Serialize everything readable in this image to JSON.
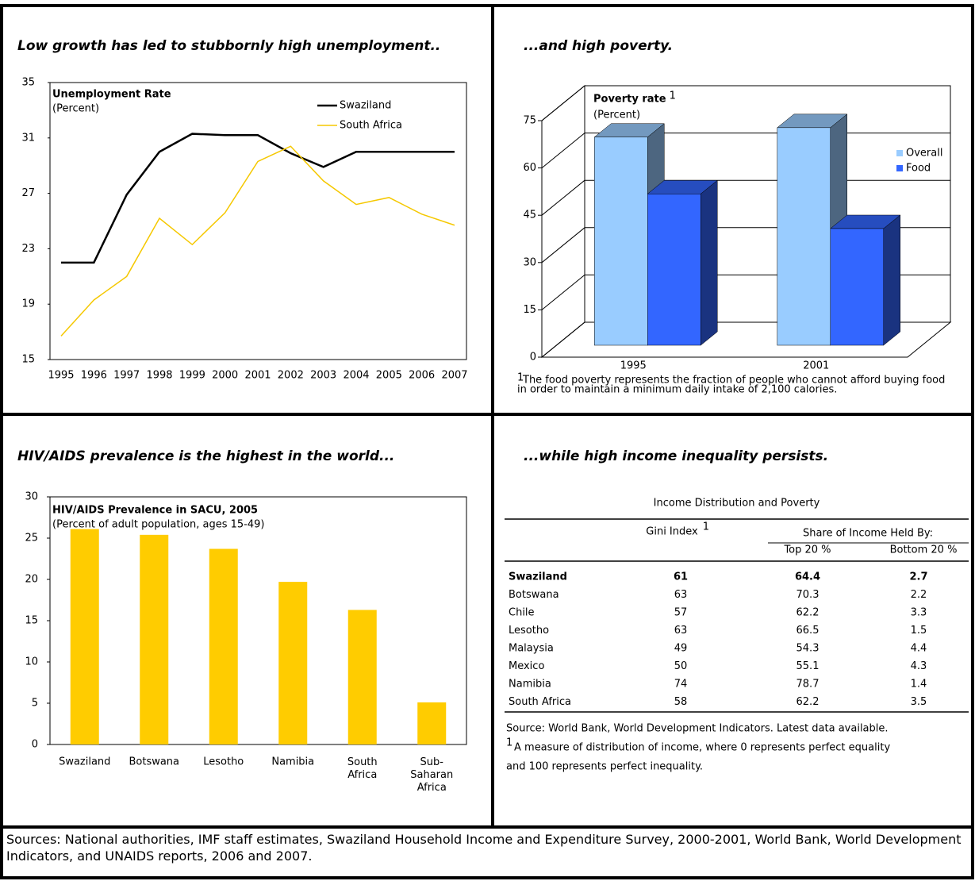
{
  "chart_data": [
    {
      "type": "line",
      "headline": "Low growth has led to stubbornly high unemployment..",
      "title": "Unemployment Rate",
      "subtitle": "(Percent)",
      "categories": [
        "1995",
        "1996",
        "1997",
        "1998",
        "1999",
        "2000",
        "2001",
        "2002",
        "2003",
        "2004",
        "2005",
        "2006",
        "2007"
      ],
      "series": [
        {
          "name": "Swaziland",
          "color": "#000000",
          "values": [
            22.0,
            22.0,
            26.9,
            30.0,
            31.3,
            31.2,
            31.2,
            29.9,
            28.9,
            30.0,
            30.0,
            30.0,
            30.0
          ]
        },
        {
          "name": "South Africa",
          "color": "#f5c800",
          "values": [
            16.7,
            19.3,
            21.0,
            25.2,
            23.3,
            25.6,
            29.3,
            30.4,
            27.9,
            26.2,
            26.7,
            25.5,
            24.7
          ]
        }
      ],
      "ylim": [
        15,
        35
      ],
      "yticks": [
        15,
        19,
        23,
        27,
        31,
        35
      ],
      "legend": "top-right"
    },
    {
      "type": "bar3d",
      "headline": "...and high poverty.",
      "title": "Poverty rate",
      "title_marker": "1",
      "subtitle": "(Percent)",
      "categories": [
        "1995",
        "2001"
      ],
      "series": [
        {
          "name": "Overall",
          "color": "#99ccff",
          "values": [
            66,
            69
          ]
        },
        {
          "name": "Food",
          "color": "#3366ff",
          "values": [
            48,
            37
          ]
        }
      ],
      "ylim": [
        0,
        75
      ],
      "yticks": [
        0,
        15,
        30,
        45,
        60,
        75
      ],
      "grid": true,
      "legend": "right",
      "footnote_marker": "1",
      "footnote": [
        "The food poverty represents the fraction of people who cannot afford buying food",
        "in order to maintain a minimum daily intake of 2,100 calories."
      ]
    },
    {
      "type": "bar",
      "headline": "HIV/AIDS prevalence is the highest in the world...",
      "title": "HIV/AIDS Prevalence in SACU, 2005",
      "subtitle": "(Percent of adult population, ages 15-49)",
      "categories": [
        "Swaziland",
        "Botswana",
        "Lesotho",
        "Namibia",
        "South Africa",
        "Sub-Saharan Africa"
      ],
      "values": [
        26.1,
        25.4,
        23.7,
        19.7,
        16.3,
        5.1
      ],
      "color": "#ffcc00",
      "ylim": [
        0,
        30
      ],
      "yticks": [
        0,
        5,
        10,
        15,
        20,
        25,
        30
      ]
    }
  ],
  "table": {
    "headline": "...while high income inequality persists.",
    "title": "Income Distribution and Poverty",
    "header": [
      "Gini Index",
      "Share of Income Held By:",
      "Top 20 %",
      "Bottom 20 %"
    ],
    "header_marker": "1",
    "rows": [
      [
        "Swaziland",
        61,
        64.4,
        2.7
      ],
      [
        "Botswana",
        63,
        70.3,
        2.2
      ],
      [
        "Chile",
        57,
        62.2,
        3.3
      ],
      [
        "Lesotho",
        63,
        66.5,
        1.5
      ],
      [
        "Malaysia",
        49,
        54.3,
        4.4
      ],
      [
        "Mexico",
        50,
        55.1,
        4.3
      ],
      [
        "Namibia",
        74,
        78.7,
        1.4
      ],
      [
        "South Africa",
        58,
        62.2,
        3.5
      ]
    ],
    "highlight_row": 0,
    "source": "Source: World Bank, World Development Indicators. Latest data available.",
    "footnote_marker": "1",
    "footnote": [
      "A measure of distribution of income, where 0 represents perfect equality",
      "and 100 represents perfect inequality."
    ]
  },
  "sources": "Sources: National authorities, IMF staff estimates, Swaziland Household Income and Expenditure Survey, 2000-2001, World Bank, World Development Indicators, and UNAIDS reports, 2006 and 2007."
}
